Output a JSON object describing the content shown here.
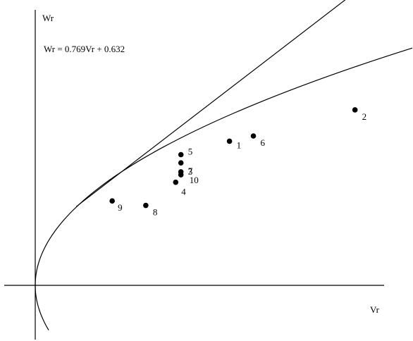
{
  "chart_data": {
    "type": "scatter",
    "title": "",
    "xlabel": "Vr",
    "ylabel": "Wr",
    "equation": "Wr = 0.769Vr + 0.632",
    "grid": false,
    "xlim": [
      -0.5,
      5.3
    ],
    "ylim": [
      -0.6,
      3.9
    ],
    "fit_line": {
      "slope": 0.769,
      "intercept": 0.632,
      "x_range": [
        0.55,
        5.8
      ]
    },
    "boundary_curve": {
      "form": "Wr^2 = 2 Vr",
      "y_range": [
        -0.6,
        3.5
      ]
    },
    "series": [
      {
        "points": [
          {
            "label": "1",
            "x": 2.6,
            "y": 1.93
          },
          {
            "label": "2",
            "x": 4.28,
            "y": 2.35
          },
          {
            "label": "3",
            "x": 1.95,
            "y": 1.52
          },
          {
            "label": "4",
            "x": 1.88,
            "y": 1.38
          },
          {
            "label": "5",
            "x": 1.95,
            "y": 1.75
          },
          {
            "label": "6",
            "x": 2.92,
            "y": 2.0
          },
          {
            "label": "7",
            "x": 1.95,
            "y": 1.64
          },
          {
            "label": "8",
            "x": 1.48,
            "y": 1.07
          },
          {
            "label": "9",
            "x": 1.03,
            "y": 1.13
          },
          {
            "label": "10",
            "x": 1.95,
            "y": 1.48
          }
        ]
      }
    ]
  }
}
